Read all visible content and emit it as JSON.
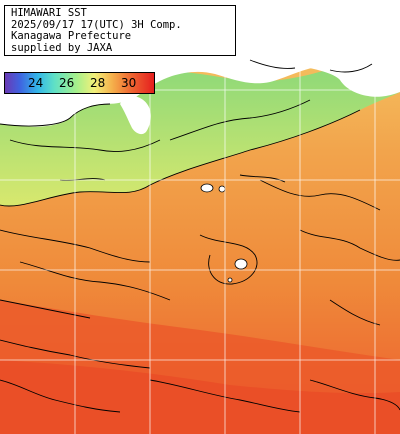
{
  "header": {
    "line1": "HIMAWARI SST",
    "line2": "2025/09/17 17(UTC) 3H Comp.",
    "line3": "Kanagawa Prefecture",
    "line4": "supplied by JAXA"
  },
  "legend": {
    "labels": [
      "24",
      "26",
      "28",
      "30"
    ],
    "min_color": "#6a3ab5",
    "max_color": "#e51e1e"
  },
  "colors": {
    "land": "#ffffff",
    "sst_cool": "#8fe07a",
    "sst_mid": "#f5c25a",
    "sst_warm": "#ee6a33",
    "contour": "#000000",
    "grid": "#ffffff"
  }
}
